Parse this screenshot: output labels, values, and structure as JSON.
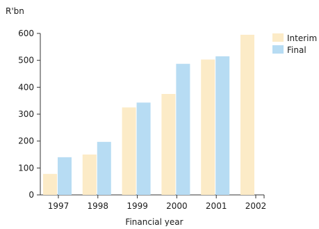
{
  "chart_data": {
    "type": "bar",
    "title": "",
    "ylabel": "R'bn",
    "xlabel": "Financial year",
    "categories": [
      "1997",
      "1998",
      "1999",
      "2000",
      "2001",
      "2002"
    ],
    "series": [
      {
        "name": "Interim",
        "color": "#fcebc7",
        "values": [
          78,
          150,
          325,
          375,
          503,
          595
        ]
      },
      {
        "name": "Final",
        "color": "#b7dcf3",
        "values": [
          140,
          197,
          343,
          487,
          515,
          null
        ]
      }
    ],
    "ylim": [
      0,
      600
    ],
    "yticks": [
      0,
      100,
      200,
      300,
      400,
      500,
      600
    ],
    "grid": false,
    "legend_position": "top-right"
  }
}
